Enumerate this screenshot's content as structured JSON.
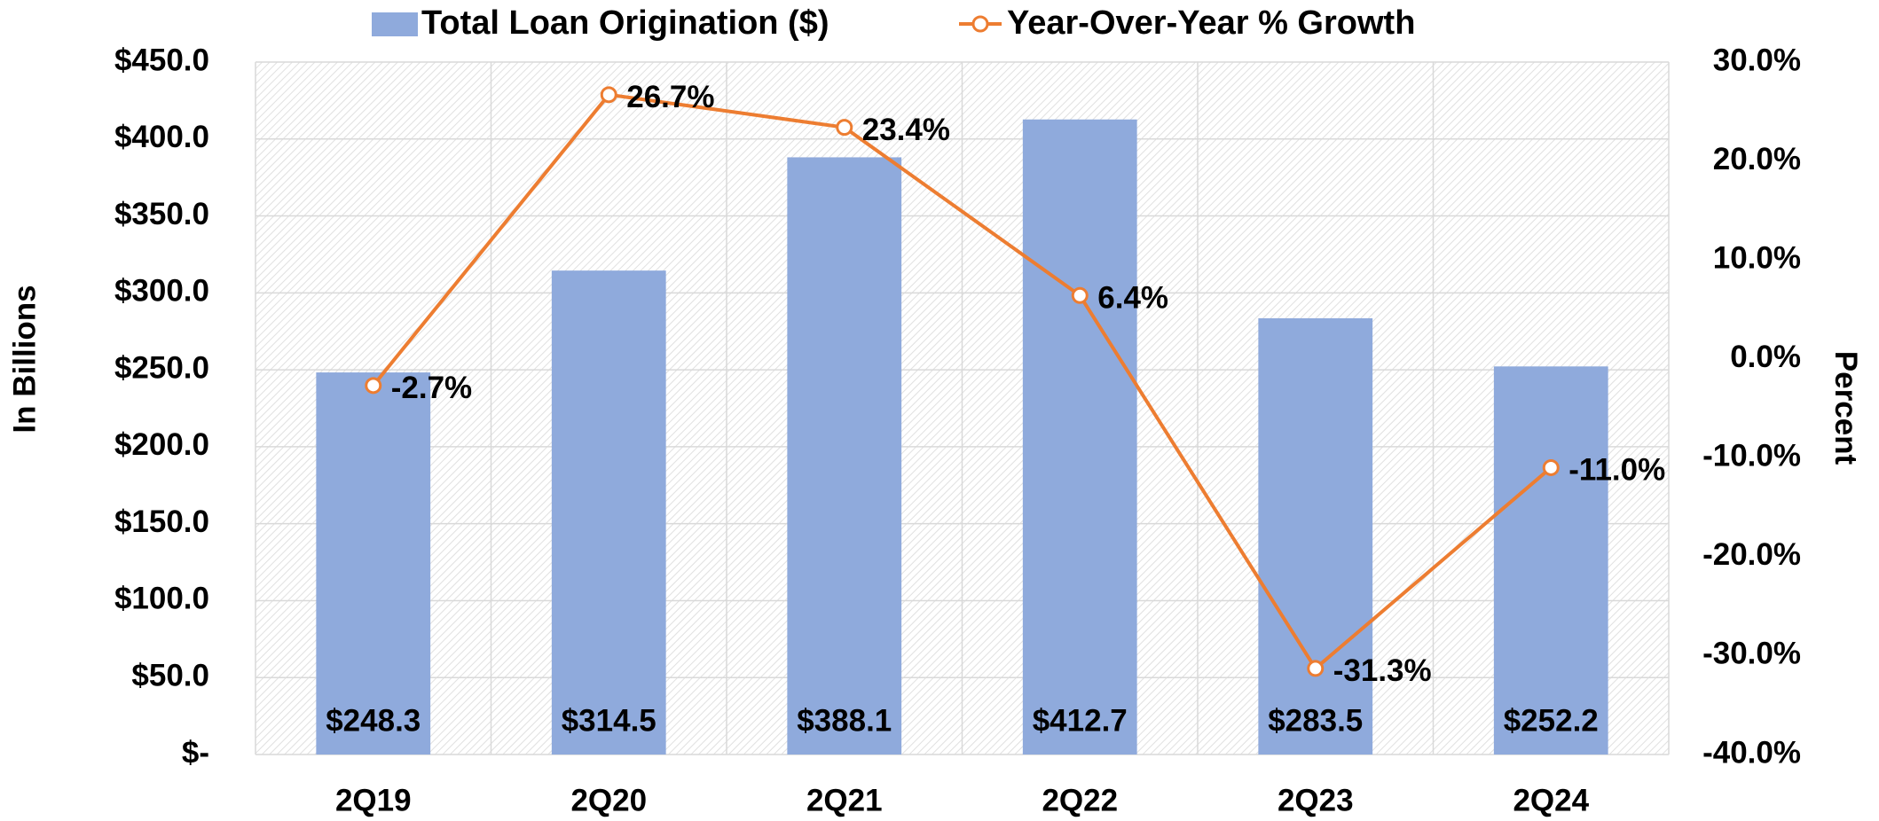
{
  "chart_data": {
    "type": "combo",
    "categories": [
      "2Q19",
      "2Q20",
      "2Q21",
      "2Q22",
      "2Q23",
      "2Q24"
    ],
    "series": [
      {
        "name": "Total Loan Origination ($)",
        "type": "bar",
        "color": "#8faadc",
        "values": [
          248.3,
          314.5,
          388.1,
          412.7,
          283.5,
          252.2
        ],
        "value_labels": [
          "$248.3",
          "$314.5",
          "$388.1",
          "$412.7",
          "$283.5",
          "$252.2"
        ]
      },
      {
        "name": "Year-Over-Year % Growth",
        "type": "line",
        "axis": "y2",
        "color": "#ed7d31",
        "values": [
          -2.7,
          26.7,
          23.4,
          6.4,
          -31.3,
          -11.0
        ],
        "value_labels": [
          "-2.7%",
          "26.7%",
          "23.4%",
          "6.4%",
          "-31.3%",
          "-11.0%"
        ]
      }
    ],
    "ylabel": "In Billions",
    "y2label": "Percent",
    "ylim": [
      0,
      450
    ],
    "yticks": [
      {
        "value": 0,
        "label": "$-"
      },
      {
        "value": 50,
        "label": "$50.0"
      },
      {
        "value": 100,
        "label": "$100.0"
      },
      {
        "value": 150,
        "label": "$150.0"
      },
      {
        "value": 200,
        "label": "$200.0"
      },
      {
        "value": 250,
        "label": "$250.0"
      },
      {
        "value": 300,
        "label": "$300.0"
      },
      {
        "value": 350,
        "label": "$350.0"
      },
      {
        "value": 400,
        "label": "$400.0"
      },
      {
        "value": 450,
        "label": "$450.0"
      }
    ],
    "y2lim": [
      -40,
      30
    ],
    "y2ticks": [
      {
        "value": -40,
        "label": "-40.0%"
      },
      {
        "value": -30,
        "label": "-30.0%"
      },
      {
        "value": -20,
        "label": "-20.0%"
      },
      {
        "value": -10,
        "label": "-10.0%"
      },
      {
        "value": 0,
        "label": "0.0%"
      },
      {
        "value": 10,
        "label": "10.0%"
      },
      {
        "value": 20,
        "label": "20.0%"
      },
      {
        "value": 30,
        "label": "30.0%"
      }
    ],
    "grid": true,
    "legend": "top"
  }
}
